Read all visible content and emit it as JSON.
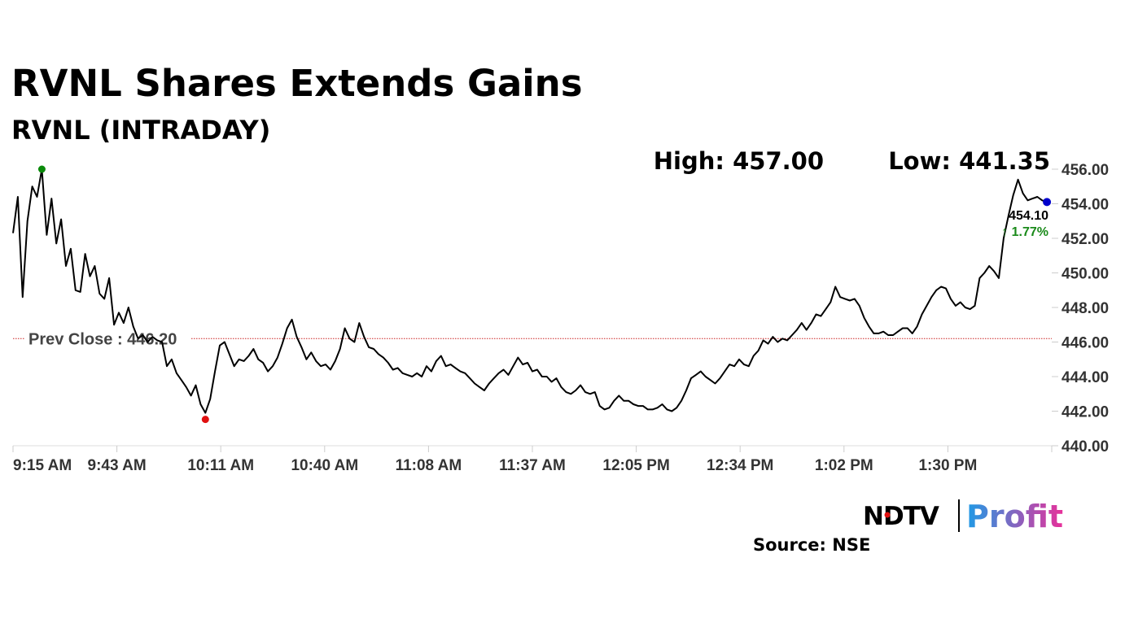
{
  "chart_data": {
    "type": "line",
    "title": "RVNL Shares Extends Gains",
    "subtitle": "RVNL (INTRADAY)",
    "high_label": "High: 457.00",
    "low_label": "Low: 441.35",
    "prev_close": 446.2,
    "prev_close_label": "Prev Close : 446.20",
    "last_value_label": "454.10",
    "change_label": "↑ 1.77%",
    "source": "Source: NSE",
    "ylim": [
      440,
      456
    ],
    "y_ticks": [
      "456.00",
      "454.00",
      "452.00",
      "450.00",
      "448.00",
      "446.00",
      "444.00",
      "442.00",
      "440.00"
    ],
    "x_ticks": [
      "9:15 AM",
      "9:43 AM",
      "10:11 AM",
      "10:40 AM",
      "11:08 AM",
      "11:37 AM",
      "12:05 PM",
      "12:34 PM",
      "1:02 PM",
      "1:30 PM"
    ],
    "series": [
      {
        "values": [
          [
            0,
            452.3
          ],
          [
            2,
            454.4
          ],
          [
            4,
            448.6
          ],
          [
            6,
            453.0
          ],
          [
            8,
            455.0
          ],
          [
            10,
            454.4
          ],
          [
            12,
            456.0
          ],
          [
            14,
            452.2
          ],
          [
            16,
            454.3
          ],
          [
            18,
            451.7
          ],
          [
            20,
            453.1
          ],
          [
            22,
            450.4
          ],
          [
            24,
            451.4
          ],
          [
            26,
            449.0
          ],
          [
            28,
            448.9
          ],
          [
            30,
            451.1
          ],
          [
            32,
            449.8
          ],
          [
            34,
            450.4
          ],
          [
            36,
            448.8
          ],
          [
            38,
            448.5
          ],
          [
            40,
            449.7
          ],
          [
            42,
            447.0
          ],
          [
            44,
            447.7
          ],
          [
            46,
            447.1
          ],
          [
            48,
            448.0
          ],
          [
            50,
            446.9
          ],
          [
            52,
            446.2
          ],
          [
            54,
            446.4
          ],
          [
            56,
            446.0
          ],
          [
            58,
            446.3
          ],
          [
            60,
            446.1
          ],
          [
            62,
            446.0
          ],
          [
            64,
            444.6
          ],
          [
            66,
            445.0
          ],
          [
            68,
            444.2
          ],
          [
            70,
            443.8
          ],
          [
            72,
            443.4
          ],
          [
            74,
            442.9
          ],
          [
            76,
            443.5
          ],
          [
            78,
            442.4
          ],
          [
            80,
            441.9
          ],
          [
            82,
            442.7
          ],
          [
            84,
            444.3
          ],
          [
            86,
            445.8
          ],
          [
            88,
            446.0
          ],
          [
            90,
            445.3
          ],
          [
            92,
            444.6
          ],
          [
            94,
            445.0
          ],
          [
            96,
            444.9
          ],
          [
            98,
            445.2
          ],
          [
            100,
            445.6
          ],
          [
            102,
            445.0
          ],
          [
            104,
            444.8
          ],
          [
            106,
            444.3
          ],
          [
            108,
            444.6
          ],
          [
            110,
            445.1
          ],
          [
            112,
            445.9
          ],
          [
            114,
            446.8
          ],
          [
            116,
            447.3
          ],
          [
            118,
            446.3
          ],
          [
            120,
            445.7
          ],
          [
            122,
            445.0
          ],
          [
            124,
            445.4
          ],
          [
            126,
            444.9
          ],
          [
            128,
            444.6
          ],
          [
            130,
            444.7
          ],
          [
            132,
            444.4
          ],
          [
            134,
            444.9
          ],
          [
            136,
            445.6
          ],
          [
            138,
            446.8
          ],
          [
            140,
            446.2
          ],
          [
            142,
            446.0
          ],
          [
            144,
            447.1
          ],
          [
            146,
            446.3
          ],
          [
            148,
            445.7
          ],
          [
            150,
            445.6
          ],
          [
            152,
            445.3
          ],
          [
            154,
            445.1
          ],
          [
            156,
            444.8
          ],
          [
            158,
            444.4
          ],
          [
            160,
            444.5
          ],
          [
            162,
            444.2
          ],
          [
            164,
            444.1
          ],
          [
            166,
            444.0
          ],
          [
            168,
            444.2
          ],
          [
            170,
            444.0
          ],
          [
            172,
            444.6
          ],
          [
            174,
            444.3
          ],
          [
            176,
            444.9
          ],
          [
            178,
            445.2
          ],
          [
            180,
            444.6
          ],
          [
            182,
            444.7
          ],
          [
            184,
            444.5
          ],
          [
            186,
            444.3
          ],
          [
            188,
            444.2
          ],
          [
            190,
            443.9
          ],
          [
            192,
            443.6
          ],
          [
            194,
            443.4
          ],
          [
            196,
            443.2
          ],
          [
            198,
            443.6
          ],
          [
            200,
            443.9
          ],
          [
            202,
            444.2
          ],
          [
            204,
            444.4
          ],
          [
            206,
            444.1
          ],
          [
            208,
            444.6
          ],
          [
            210,
            445.1
          ],
          [
            212,
            444.7
          ],
          [
            214,
            444.8
          ],
          [
            216,
            444.3
          ],
          [
            218,
            444.4
          ],
          [
            220,
            444.0
          ],
          [
            222,
            444.0
          ],
          [
            224,
            443.7
          ],
          [
            226,
            443.9
          ],
          [
            228,
            443.4
          ],
          [
            230,
            443.1
          ],
          [
            232,
            443.0
          ],
          [
            234,
            443.2
          ],
          [
            236,
            443.5
          ],
          [
            238,
            443.1
          ],
          [
            240,
            443.0
          ],
          [
            242,
            443.1
          ],
          [
            244,
            442.3
          ],
          [
            246,
            442.1
          ],
          [
            248,
            442.2
          ],
          [
            250,
            442.6
          ],
          [
            252,
            442.9
          ],
          [
            254,
            442.6
          ],
          [
            256,
            442.6
          ],
          [
            258,
            442.4
          ],
          [
            260,
            442.3
          ],
          [
            262,
            442.3
          ],
          [
            264,
            442.1
          ],
          [
            266,
            442.1
          ],
          [
            268,
            442.2
          ],
          [
            270,
            442.4
          ],
          [
            272,
            442.1
          ],
          [
            274,
            442.0
          ],
          [
            276,
            442.2
          ],
          [
            278,
            442.6
          ],
          [
            280,
            443.2
          ],
          [
            282,
            443.9
          ],
          [
            284,
            444.1
          ],
          [
            286,
            444.3
          ],
          [
            288,
            444.0
          ],
          [
            290,
            443.8
          ],
          [
            292,
            443.6
          ],
          [
            294,
            443.9
          ],
          [
            296,
            444.3
          ],
          [
            298,
            444.7
          ],
          [
            300,
            444.6
          ],
          [
            302,
            445.0
          ],
          [
            304,
            444.7
          ],
          [
            306,
            444.6
          ],
          [
            308,
            445.2
          ],
          [
            310,
            445.5
          ],
          [
            312,
            446.1
          ],
          [
            314,
            445.9
          ],
          [
            316,
            446.3
          ],
          [
            318,
            446.0
          ],
          [
            320,
            446.2
          ],
          [
            322,
            446.1
          ],
          [
            324,
            446.4
          ],
          [
            326,
            446.7
          ],
          [
            328,
            447.1
          ],
          [
            330,
            446.7
          ],
          [
            332,
            447.1
          ],
          [
            334,
            447.6
          ],
          [
            336,
            447.5
          ],
          [
            338,
            447.9
          ],
          [
            340,
            448.3
          ],
          [
            342,
            449.2
          ],
          [
            344,
            448.6
          ],
          [
            346,
            448.5
          ],
          [
            348,
            448.4
          ],
          [
            350,
            448.5
          ],
          [
            352,
            448.1
          ],
          [
            354,
            447.4
          ],
          [
            356,
            446.9
          ],
          [
            358,
            446.5
          ],
          [
            360,
            446.5
          ],
          [
            362,
            446.6
          ],
          [
            364,
            446.4
          ],
          [
            366,
            446.4
          ],
          [
            368,
            446.6
          ],
          [
            370,
            446.8
          ],
          [
            372,
            446.8
          ],
          [
            374,
            446.5
          ],
          [
            376,
            446.9
          ],
          [
            378,
            447.6
          ],
          [
            380,
            448.1
          ],
          [
            382,
            448.6
          ],
          [
            384,
            449.0
          ],
          [
            386,
            449.2
          ],
          [
            388,
            449.1
          ],
          [
            390,
            448.5
          ],
          [
            392,
            448.1
          ],
          [
            394,
            448.3
          ],
          [
            396,
            448.0
          ],
          [
            398,
            447.9
          ],
          [
            400,
            448.1
          ],
          [
            402,
            449.7
          ],
          [
            404,
            450.0
          ],
          [
            406,
            450.4
          ],
          [
            408,
            450.1
          ],
          [
            410,
            449.7
          ],
          [
            412,
            452.0
          ],
          [
            414,
            453.3
          ],
          [
            416,
            454.5
          ],
          [
            418,
            455.4
          ],
          [
            420,
            454.6
          ],
          [
            422,
            454.2
          ],
          [
            424,
            454.3
          ],
          [
            426,
            454.4
          ],
          [
            428,
            454.2
          ],
          [
            430,
            454.1
          ]
        ]
      }
    ]
  },
  "logo": {
    "ndtv": "NDTV",
    "profit": "Profit"
  },
  "colors": {
    "line": "#000000",
    "high_dot": "#0a8a0a",
    "low_dot": "#e01010",
    "last_dot": "#0000cc",
    "prev_close_line": "#cc2222",
    "change_up": "#1a8a1a",
    "profit_start": "#1e9be6",
    "profit_end": "#e8309a"
  }
}
